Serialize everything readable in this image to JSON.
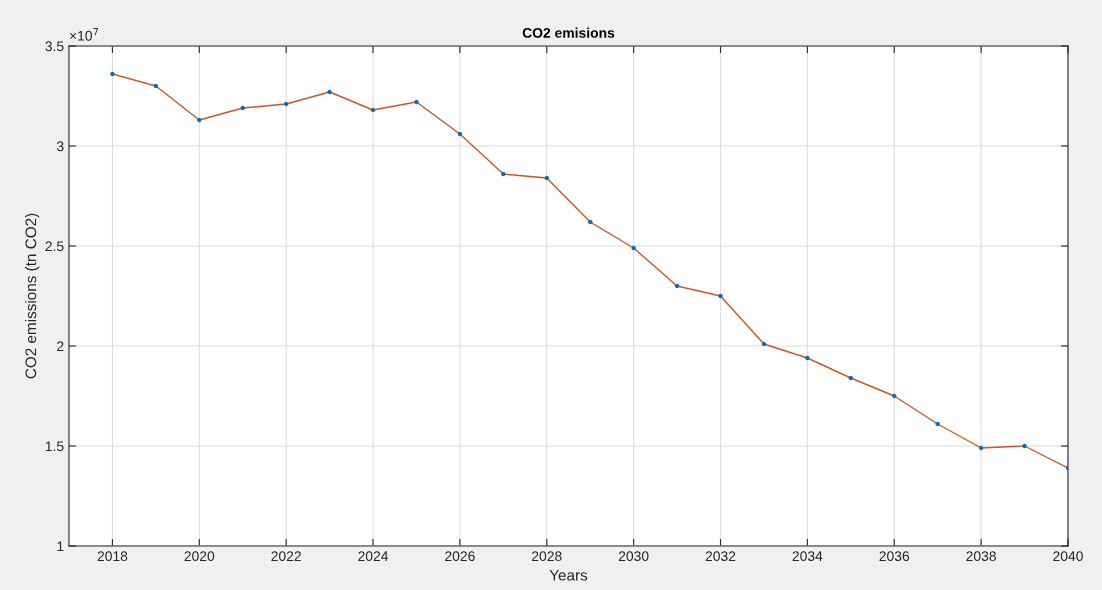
{
  "chart_data": {
    "type": "line",
    "title": "CO2 emisions",
    "xlabel": "Years",
    "ylabel": "CO2 emissions (tn CO2)",
    "x": [
      2018,
      2019,
      2020,
      2021,
      2022,
      2023,
      2024,
      2025,
      2026,
      2027,
      2028,
      2029,
      2030,
      2031,
      2032,
      2033,
      2034,
      2035,
      2036,
      2037,
      2038,
      2039,
      2040
    ],
    "series": [
      {
        "color": "#d95319",
        "marker": "none",
        "line_style": "solid",
        "values": [
          3.36,
          3.3,
          3.13,
          3.19,
          3.21,
          3.27,
          3.18,
          3.22,
          3.06,
          2.86,
          2.84,
          2.62,
          2.49,
          2.3,
          2.25,
          2.01,
          1.94,
          1.84,
          1.75,
          1.61,
          1.49,
          1.5,
          1.39
        ]
      },
      {
        "type": "scatter",
        "color": "#0072bd",
        "marker": "circle",
        "values": [
          3.36,
          3.3,
          3.13,
          3.19,
          3.21,
          3.27,
          3.18,
          3.22,
          3.06,
          2.86,
          2.84,
          2.62,
          2.49,
          2.3,
          2.25,
          2.01,
          1.94,
          1.84,
          1.75,
          1.61,
          1.49,
          1.5,
          1.39
        ]
      }
    ],
    "xlim": [
      2017,
      2040
    ],
    "xticks": [
      2018,
      2020,
      2022,
      2024,
      2026,
      2028,
      2030,
      2032,
      2034,
      2036,
      2038,
      2040
    ],
    "ylim": [
      1,
      3.5
    ],
    "yticks": [
      1,
      1.5,
      2,
      2.5,
      3,
      3.5
    ],
    "annotations": [
      "×10$^{7}$"
    ],
    "grid": true
  }
}
